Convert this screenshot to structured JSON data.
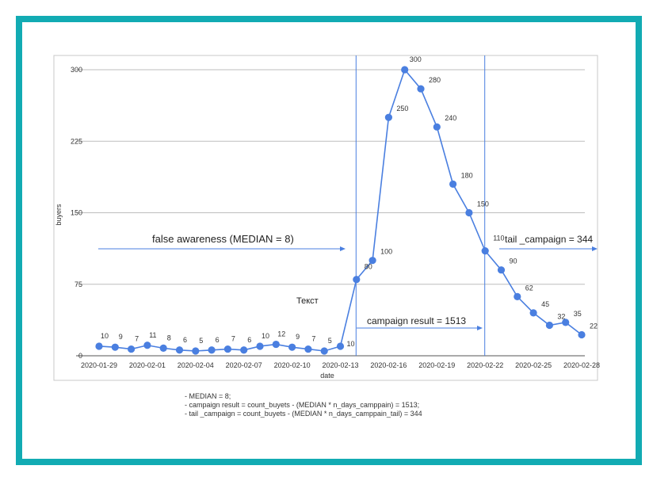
{
  "chart_data": {
    "type": "line",
    "title": "",
    "xlabel": "date",
    "ylabel": "buyers",
    "ylim": [
      0,
      300
    ],
    "yticks": [
      "0",
      "75",
      "150",
      "225",
      "300"
    ],
    "x": [
      "2020-01-29",
      "2020-01-30",
      "2020-01-31",
      "2020-02-01",
      "2020-02-02",
      "2020-02-03",
      "2020-02-04",
      "2020-02-05",
      "2020-02-06",
      "2020-02-07",
      "2020-02-08",
      "2020-02-09",
      "2020-02-10",
      "2020-02-11",
      "2020-02-12",
      "2020-02-13",
      "2020-02-14",
      "2020-02-15",
      "2020-02-16",
      "2020-02-17",
      "2020-02-18",
      "2020-02-19",
      "2020-02-20",
      "2020-02-21",
      "2020-02-22",
      "2020-02-23",
      "2020-02-24",
      "2020-02-25",
      "2020-02-26",
      "2020-02-27",
      "2020-02-28"
    ],
    "xtick_labels": [
      "2020-01-29",
      "2020-02-01",
      "2020-02-04",
      "2020-02-07",
      "2020-02-10",
      "2020-02-13",
      "2020-02-16",
      "2020-02-19",
      "2020-02-22",
      "2020-02-25",
      "2020-02-28"
    ],
    "values": [
      10,
      9,
      7,
      11,
      8,
      6,
      5,
      6,
      7,
      6,
      10,
      12,
      9,
      7,
      5,
      10,
      80,
      100,
      250,
      300,
      280,
      240,
      180,
      150,
      110,
      90,
      62,
      45,
      32,
      35,
      22
    ],
    "data_labels": [
      "10",
      "9",
      "7",
      "11",
      "8",
      "6",
      "5",
      "6",
      "7",
      "6",
      "10",
      "12",
      "9",
      "7",
      "5",
      "10",
      "80",
      "100",
      "250",
      "300",
      "280",
      "240",
      "180",
      "150",
      "110",
      "90",
      "62",
      "45",
      "32",
      "35",
      "22"
    ],
    "grid": true,
    "series_color": "#4a7fe0",
    "vlines": [
      "2020-02-14",
      "2020-02-22"
    ],
    "annotations": {
      "false_awareness": "false awareness (MEDIAN = 8)",
      "campaign_result": "campaign result  = 1513",
      "tail_campaign": "tail _campaign = 344",
      "text_label": "Текст"
    }
  },
  "notes": [
    "-  MEDIAN = 8;",
    "-  campaign result = count_buyets - (MEDIAN * n_days_camppain) = 1513;",
    "-  tail _campaign = count_buyets - (MEDIAN * n_days_camppain_tail) = 344"
  ],
  "colors": {
    "frame": "#12abb3",
    "series": "#4a7fe0",
    "grid": "#bdbdbd"
  }
}
